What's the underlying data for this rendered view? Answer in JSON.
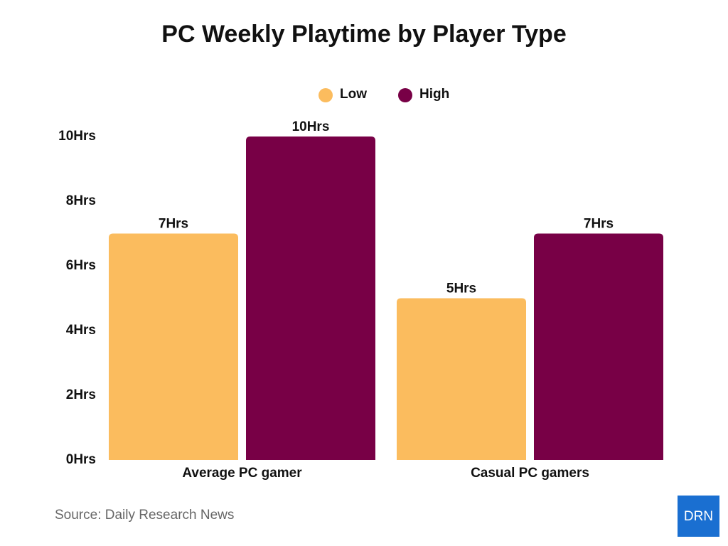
{
  "chart_data": {
    "type": "bar",
    "title": "PC Weekly Playtime by Player Type",
    "categories": [
      "Average PC gamer",
      "Casual PC gamers"
    ],
    "series": [
      {
        "name": "Low",
        "color": "#fbbc5e",
        "values": [
          7,
          5
        ],
        "value_labels": [
          "7Hrs",
          "5Hrs"
        ]
      },
      {
        "name": "High",
        "color": "#780046",
        "values": [
          10,
          7
        ],
        "value_labels": [
          "10Hrs",
          "7Hrs"
        ]
      }
    ],
    "ylim": [
      0,
      10
    ],
    "yticks": [
      {
        "value": 0,
        "label": "0Hrs"
      },
      {
        "value": 2,
        "label": "2Hrs"
      },
      {
        "value": 4,
        "label": "4Hrs"
      },
      {
        "value": 6,
        "label": "6Hrs"
      },
      {
        "value": 8,
        "label": "8Hrs"
      },
      {
        "value": 10,
        "label": "10Hrs"
      }
    ],
    "grid": false,
    "legend": "top",
    "source": "Source: Daily Research News"
  },
  "logo": "DRN"
}
